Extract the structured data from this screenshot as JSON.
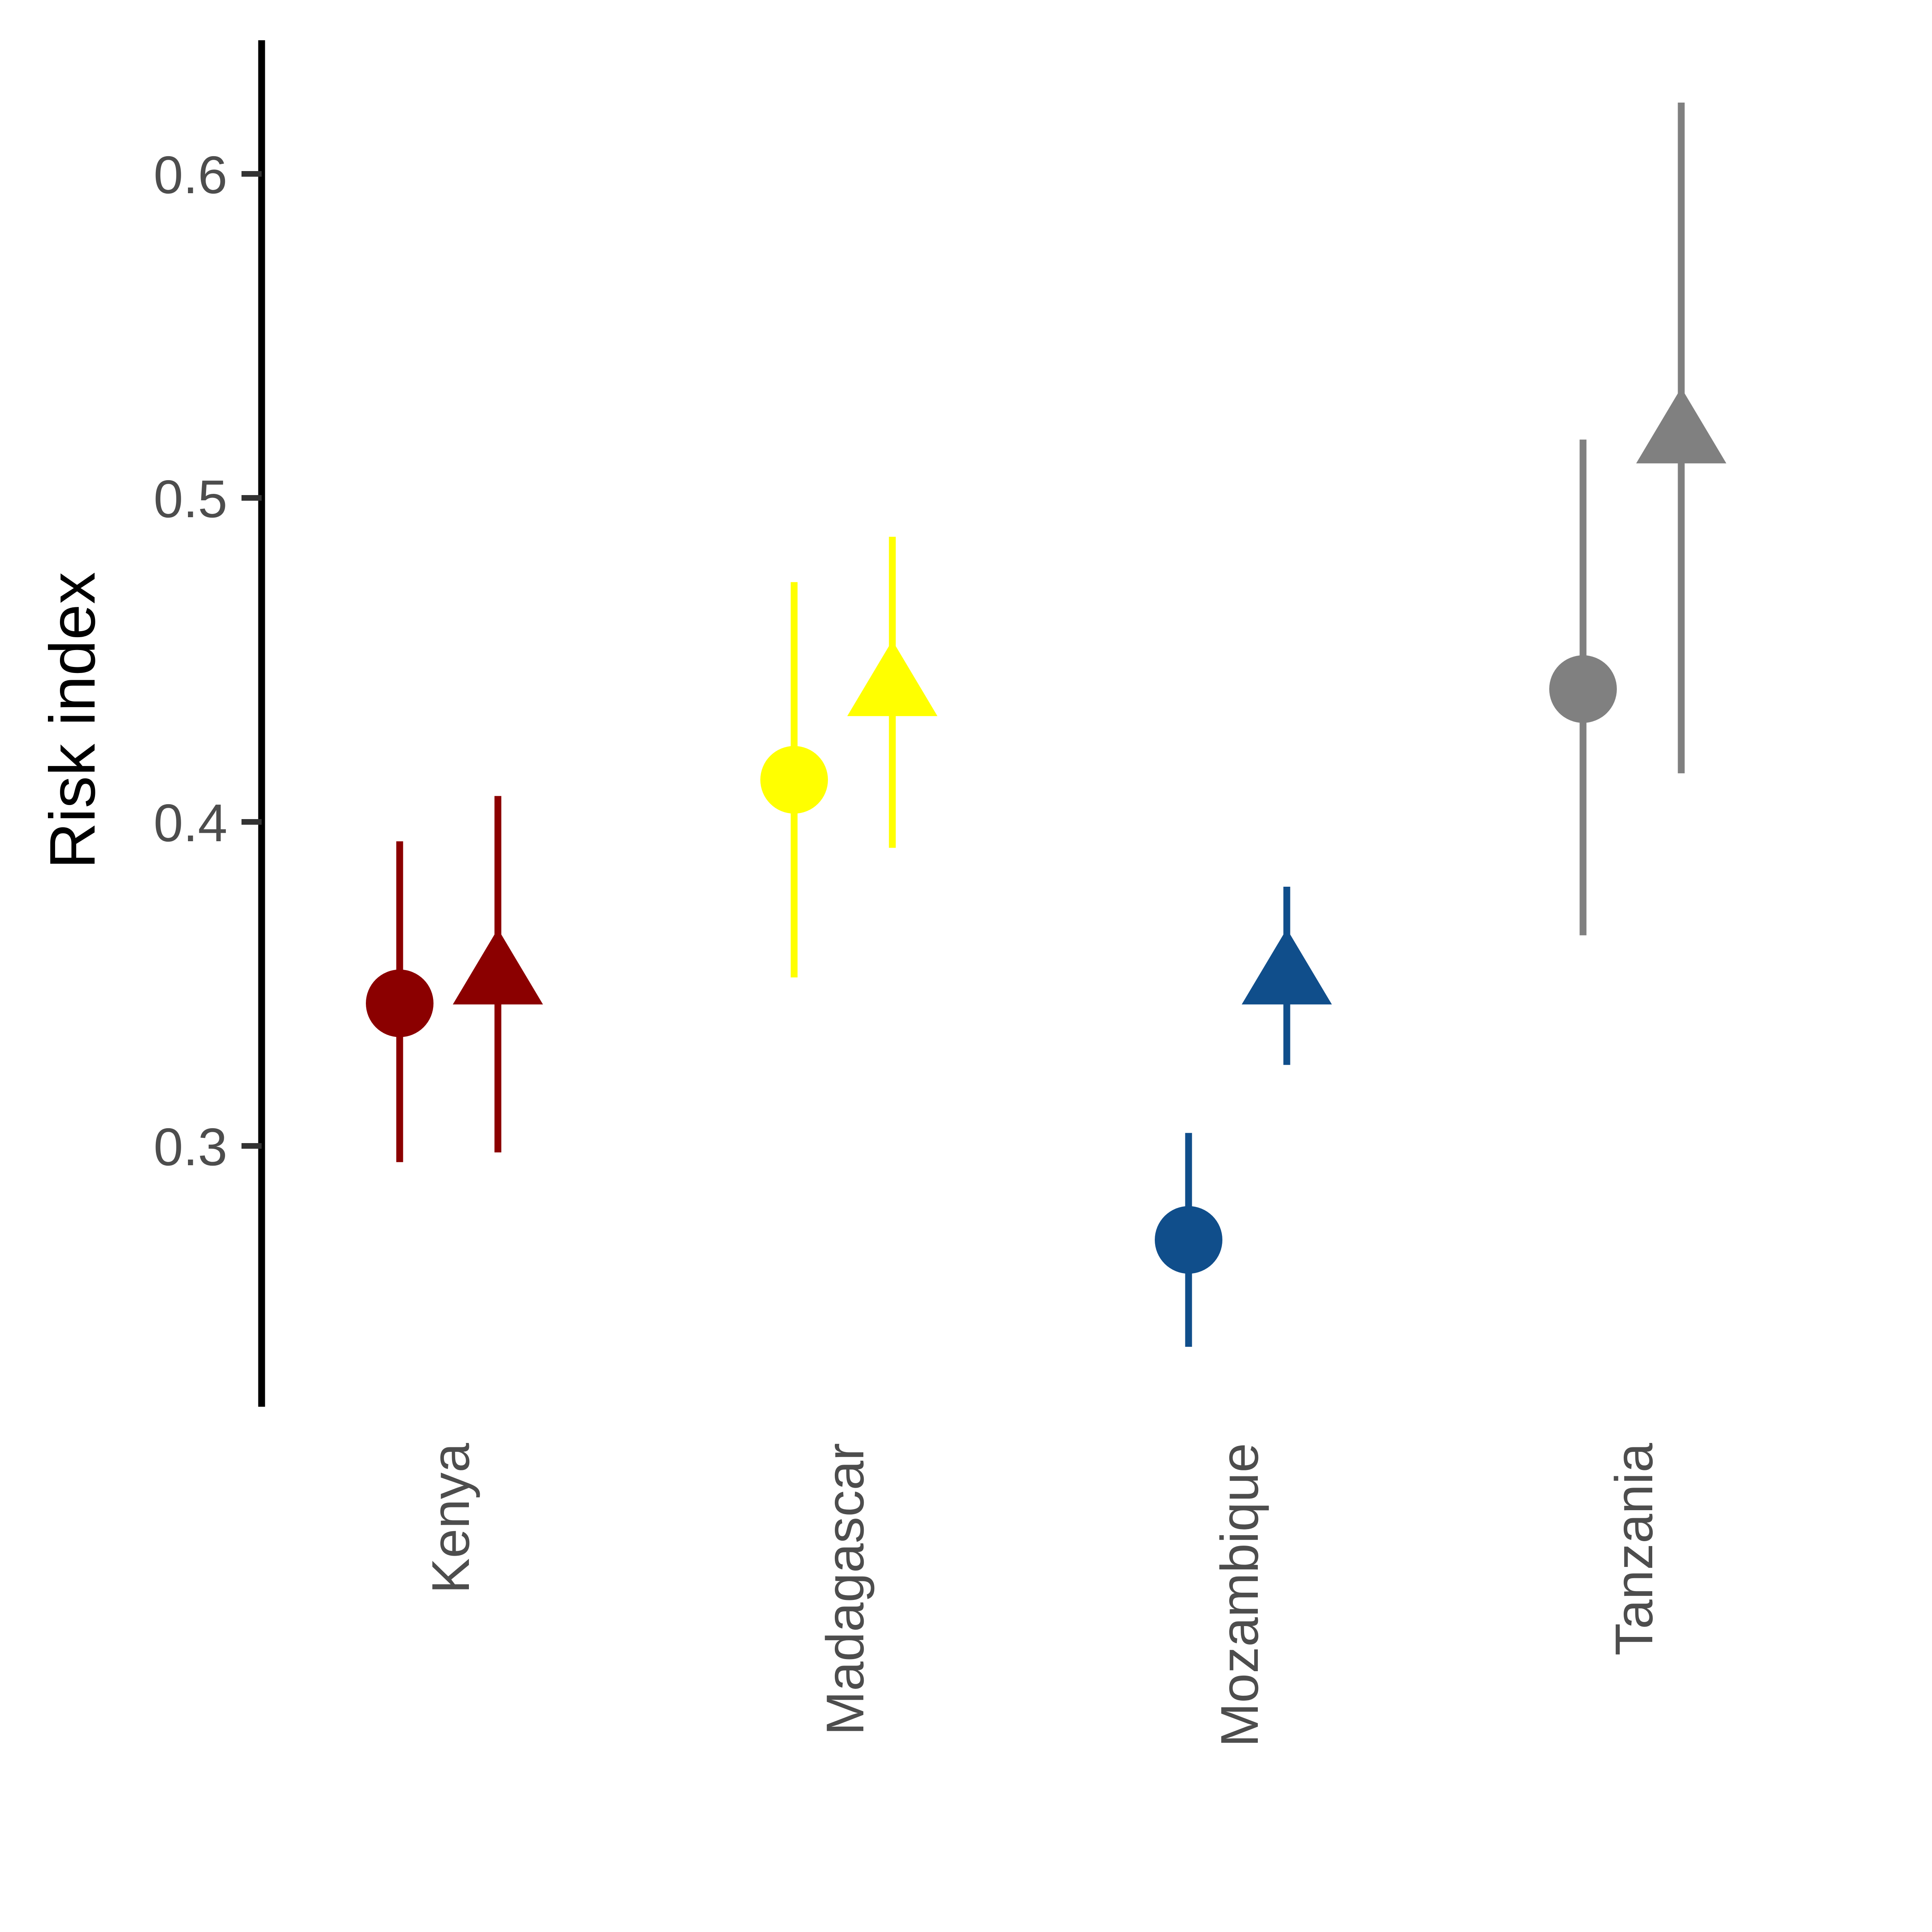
{
  "chart_data": {
    "type": "scatter",
    "title": "",
    "xlabel": "",
    "ylabel": "Risk index",
    "ylim": [
      0.22,
      0.64
    ],
    "yticks": [
      0.3,
      0.4,
      0.5,
      0.6
    ],
    "ytick_labels": [
      "0.3",
      "0.4",
      "0.5",
      "0.6"
    ],
    "categories": [
      "Kenya",
      "Madagascar",
      "Mozambique",
      "Tanzania"
    ],
    "category_colors": [
      "#8b0000",
      "#ffff00",
      "#104e8b",
      "#808080"
    ],
    "grid": false,
    "legend": "none",
    "series": [
      {
        "marker": "circle",
        "points": [
          {
            "category": "Kenya",
            "y": 0.344,
            "ymin": 0.295,
            "ymax": 0.394
          },
          {
            "category": "Madagascar",
            "y": 0.413,
            "ymin": 0.352,
            "ymax": 0.474
          },
          {
            "category": "Mozambique",
            "y": 0.271,
            "ymin": 0.238,
            "ymax": 0.304
          },
          {
            "category": "Tanzania",
            "y": 0.441,
            "ymin": 0.365,
            "ymax": 0.518
          }
        ]
      },
      {
        "marker": "triangle",
        "points": [
          {
            "category": "Kenya",
            "y": 0.353,
            "ymin": 0.298,
            "ymax": 0.408
          },
          {
            "category": "Madagascar",
            "y": 0.442,
            "ymin": 0.392,
            "ymax": 0.488
          },
          {
            "category": "Mozambique",
            "y": 0.353,
            "ymin": 0.325,
            "ymax": 0.38
          },
          {
            "category": "Tanzania",
            "y": 0.52,
            "ymin": 0.415,
            "ymax": 0.622
          }
        ]
      }
    ]
  }
}
